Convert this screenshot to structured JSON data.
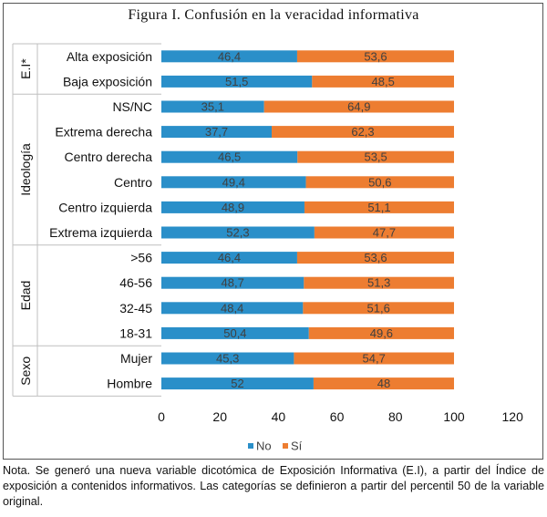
{
  "title": "Figura I. Confusión en la veracidad informativa",
  "note": "Nota. Se generó una nueva variable dicotómica de Exposición Informativa (E.I), a partir del Índice de exposición a contenidos informativos. Las categorías se definieron a partir del percentil 50 de la variable original.",
  "colors": {
    "no": "#2a8fc9",
    "si": "#ed7d31"
  },
  "chart_data": {
    "type": "bar",
    "orientation": "horizontal",
    "stacked": true,
    "title": "Figura I. Confusión en la veracidad informativa",
    "xlim": [
      0,
      120
    ],
    "xticks": [
      "0",
      "20",
      "40",
      "60",
      "80",
      "100",
      "120"
    ],
    "legend_position": "bottom",
    "grid": false,
    "groups": [
      {
        "label": "E.I*",
        "categories": [
          "Alta exposición",
          "Baja exposición"
        ]
      },
      {
        "label": "Ideología",
        "categories": [
          "NS/NC",
          "Extrema derecha",
          "Centro derecha",
          "Centro",
          "Centro izquierda",
          "Extrema izquierda"
        ]
      },
      {
        "label": "Edad",
        "categories": [
          ">56",
          "46-56",
          "32-45",
          "18-31"
        ]
      },
      {
        "label": "Sexo",
        "categories": [
          "Mujer",
          "Hombre"
        ]
      }
    ],
    "categories": [
      "Alta exposición",
      "Baja exposición",
      "NS/NC",
      "Extrema derecha",
      "Centro derecha",
      "Centro",
      "Centro izquierda",
      "Extrema izquierda",
      ">56",
      "46-56",
      "32-45",
      "18-31",
      "Mujer",
      "Hombre"
    ],
    "series": [
      {
        "name": "No",
        "values": [
          46.4,
          51.5,
          35.1,
          37.7,
          46.5,
          49.4,
          48.9,
          52.3,
          46.4,
          48.7,
          48.4,
          50.4,
          45.3,
          52
        ]
      },
      {
        "name": "Sí",
        "values": [
          53.6,
          48.5,
          64.9,
          62.3,
          53.5,
          50.6,
          51.1,
          47.7,
          53.6,
          51.3,
          51.6,
          49.6,
          54.7,
          48
        ]
      }
    ],
    "value_labels": [
      [
        "46,4",
        "51,5",
        "35,1",
        "37,7",
        "46,5",
        "49,4",
        "48,9",
        "52,3",
        "46,4",
        "48,7",
        "48,4",
        "50,4",
        "45,3",
        "52"
      ],
      [
        "53,6",
        "48,5",
        "64,9",
        "62,3",
        "53,5",
        "50,6",
        "51,1",
        "47,7",
        "53,6",
        "51,3",
        "51,6",
        "49,6",
        "54,7",
        "48"
      ]
    ]
  }
}
